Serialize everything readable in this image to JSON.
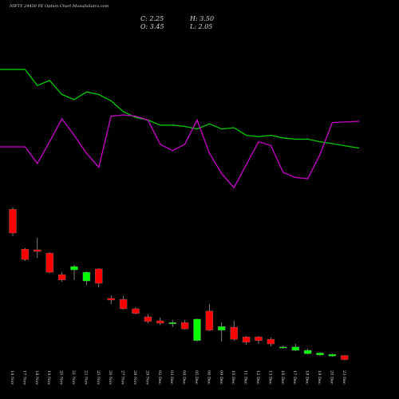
{
  "chart_data": {
    "type": "candlestick",
    "title": "NIFTY 24450  PE Option  Chart MunafaSutra.com",
    "info": [
      "C: 2.25",
      "H: 3.50",
      "O: 3.45",
      "L: 2.05"
    ],
    "categories": [
      "14 Nov",
      "17 Nov",
      "18 Nov",
      "19 Nov",
      "20 Nov",
      "21 Nov",
      "22 Nov",
      "25 Nov",
      "26 Nov",
      "27 Nov",
      "28 Nov",
      "29 Nov",
      "02 Dec",
      "03 Dec",
      "04 Dec",
      "05 Dec",
      "06 Dec",
      "09 Dec",
      "10 Dec",
      "11 Dec",
      "12 Dec",
      "13 Dec",
      "16 Dec",
      "17 Dec",
      "18 Dec",
      "19 Dec",
      "20 Dec",
      "23 Dec"
    ],
    "open": [
      47.1,
      35.2,
      35,
      34,
      27.6,
      29,
      25.7,
      29.3,
      20.5,
      20.2,
      17.4,
      15,
      13.8,
      12.9,
      13.3,
      7.9,
      16.7,
      11,
      11.9,
      9,
      9,
      8.3,
      5.7,
      5,
      4,
      3.6,
      3.3,
      3.45
    ],
    "high": [
      47.6,
      35.5,
      38.6,
      34.3,
      28.3,
      30.5,
      28.6,
      29.5,
      21.4,
      21.2,
      17.9,
      15.7,
      14.8,
      14.1,
      14,
      14.5,
      18.8,
      13.3,
      13.8,
      9.3,
      9.3,
      8.8,
      6.4,
      6.9,
      5.5,
      4.5,
      4,
      3.5
    ],
    "low": [
      39,
      31.7,
      32.6,
      28,
      25.5,
      26,
      24.5,
      23.8,
      18.8,
      17.1,
      15.7,
      13.1,
      12.6,
      11.9,
      11.2,
      7.6,
      10.7,
      7.6,
      7.9,
      6.7,
      6.9,
      6.2,
      5.5,
      4.8,
      3.8,
      3.4,
      3.1,
      2.05
    ],
    "close": [
      40,
      32.1,
      34.5,
      28.3,
      26,
      30,
      28.3,
      25,
      20,
      17.4,
      16,
      13.6,
      13.1,
      13.3,
      11.4,
      14.3,
      11,
      12.1,
      8.3,
      7.4,
      7.9,
      6.9,
      6,
      6,
      5,
      4.2,
      3.8,
      2.25
    ],
    "up_color": "#00ff00",
    "down_color": "#ff0000",
    "ylim": [
      0,
      50
    ],
    "y2lim": [
      0,
      100
    ],
    "series": [
      {
        "color": "#00cc00",
        "axis": "y2",
        "values": [
          95.6,
          95.6,
          83,
          87,
          76,
          72,
          78,
          76,
          71,
          62.5,
          58,
          56,
          52,
          52,
          51,
          49,
          53,
          49,
          50,
          44,
          43,
          44,
          42,
          41,
          41,
          39,
          37.5,
          34
        ]
      },
      {
        "color": "#cc00cc",
        "axis": "y2",
        "values": [
          35,
          35,
          22,
          39,
          57,
          44,
          30,
          19,
          59,
          60,
          59,
          56,
          37,
          32,
          37,
          56,
          30,
          14,
          3,
          21,
          39,
          36,
          15,
          11,
          10,
          29,
          54,
          55
        ]
      }
    ]
  }
}
